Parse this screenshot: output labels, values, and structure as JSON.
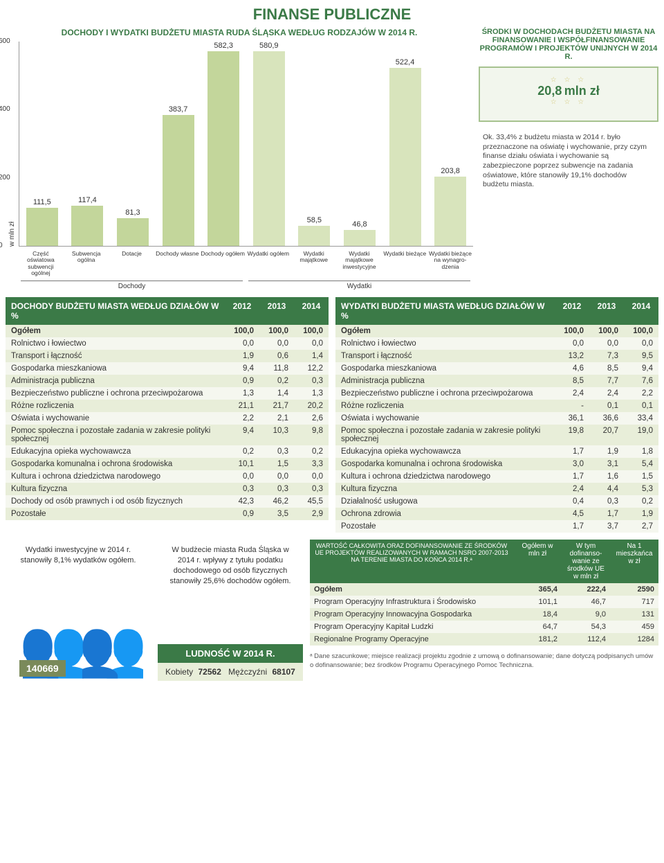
{
  "title": "FINANSE PUBLICZNE",
  "chart": {
    "title": "DOCHODY I WYDATKI BUDŻETU MIASTA\nRUDA ŚLĄSKA WEDŁUG RODZAJÓW W 2014 R.",
    "ylabel": "w mln zł",
    "ymax": 600,
    "yticks": [
      0,
      200,
      400,
      600
    ],
    "categories": [
      "Część oświatowa subwencji ogólnej",
      "Subwencja ogólna",
      "Dotacje",
      "Dochody własne",
      "Dochody ogółem",
      "Wydatki ogółem",
      "Wydatki majątkowe",
      "Wydatki majątkowe inwestycyjne",
      "Wydatki bieżące",
      "Wydatki bieżące na wynagro- dzenia"
    ],
    "values": [
      "111,5",
      "117,4",
      "81,3",
      "383,7",
      "582,3",
      "580,9",
      "58,5",
      "46,8",
      "522,4",
      "203,8"
    ],
    "numeric": [
      111.5,
      117.4,
      81.3,
      383.7,
      582.3,
      580.9,
      58.5,
      46.8,
      522.4,
      203.8
    ],
    "colors": [
      "#c3d69b",
      "#c3d69b",
      "#c3d69b",
      "#c3d69b",
      "#c3d69b",
      "#d8e4bc",
      "#d8e4bc",
      "#d8e4bc",
      "#d8e4bc",
      "#d8e4bc"
    ],
    "group1": "Dochody",
    "group2": "Wydatki"
  },
  "eu_box": {
    "title": "ŚRODKI W DOCHODACH BUDŻETU MIASTA NA FINANSOWANIE I WSPÓŁFINANSOWANIE PROGRAMÓW I PROJEKTÓW UNIJNYCH W 2014 R.",
    "value": "20,8",
    "unit": "mln zł"
  },
  "annotation": "Ok. 33,4% z budżetu miasta w 2014 r. było przeznaczone na oświatę i wychowanie, przy czym finanse działu oświata i wychowanie są zabezpieczone poprzez subwencje na zadania oświatowe, które stanowiły 19,1% dochodów budżetu miasta.",
  "income_table": {
    "title": "DOCHODY BUDŻETU MIASTA WEDŁUG DZIAŁÓW W %",
    "years": [
      "2012",
      "2013",
      "2014"
    ],
    "rows": [
      {
        "name": "Ogółem",
        "v": [
          "100,0",
          "100,0",
          "100,0"
        ],
        "bold": true
      },
      {
        "name": "Rolnictwo i łowiectwo",
        "v": [
          "0,0",
          "0,0",
          "0,0"
        ]
      },
      {
        "name": "Transport i łączność",
        "v": [
          "1,9",
          "0,6",
          "1,4"
        ]
      },
      {
        "name": "Gospodarka mieszkaniowa",
        "v": [
          "9,4",
          "11,8",
          "12,2"
        ]
      },
      {
        "name": "Administracja publiczna",
        "v": [
          "0,9",
          "0,2",
          "0,3"
        ]
      },
      {
        "name": "Bezpieczeństwo publiczne i ochrona przeciwpożarowa",
        "v": [
          "1,3",
          "1,4",
          "1,3"
        ]
      },
      {
        "name": "Różne rozliczenia",
        "v": [
          "21,1",
          "21,7",
          "20,2"
        ]
      },
      {
        "name": "Oświata i wychowanie",
        "v": [
          "2,2",
          "2,1",
          "2,6"
        ]
      },
      {
        "name": "Pomoc społeczna i pozostałe zadania w zakresie polityki społecznej",
        "v": [
          "9,4",
          "10,3",
          "9,8"
        ]
      },
      {
        "name": "Edukacyjna opieka wychowawcza",
        "v": [
          "0,2",
          "0,3",
          "0,2"
        ]
      },
      {
        "name": "Gospodarka komunalna i ochrona środowiska",
        "v": [
          "10,1",
          "1,5",
          "3,3"
        ]
      },
      {
        "name": "Kultura i ochrona dziedzictwa narodowego",
        "v": [
          "0,0",
          "0,0",
          "0,0"
        ]
      },
      {
        "name": "Kultura fizyczna",
        "v": [
          "0,3",
          "0,3",
          "0,3"
        ]
      },
      {
        "name": "Dochody od osób prawnych i od osób fizycznych",
        "v": [
          "42,3",
          "46,2",
          "45,5"
        ]
      },
      {
        "name": "Pozostałe",
        "v": [
          "0,9",
          "3,5",
          "2,9"
        ]
      }
    ]
  },
  "expense_table": {
    "title": "WYDATKI BUDŻETU MIASTA WEDŁUG DZIAŁÓW W %",
    "years": [
      "2012",
      "2013",
      "2014"
    ],
    "rows": [
      {
        "name": "Ogółem",
        "v": [
          "100,0",
          "100,0",
          "100,0"
        ],
        "bold": true
      },
      {
        "name": "Rolnictwo i łowiectwo",
        "v": [
          "0,0",
          "0,0",
          "0,0"
        ]
      },
      {
        "name": "Transport i łączność",
        "v": [
          "13,2",
          "7,3",
          "9,5"
        ]
      },
      {
        "name": "Gospodarka mieszkaniowa",
        "v": [
          "4,6",
          "8,5",
          "9,4"
        ]
      },
      {
        "name": "Administracja publiczna",
        "v": [
          "8,5",
          "7,7",
          "7,6"
        ]
      },
      {
        "name": "Bezpieczeństwo publiczne i ochrona przeciwpożarowa",
        "v": [
          "2,4",
          "2,4",
          "2,2"
        ]
      },
      {
        "name": "Różne rozliczenia",
        "v": [
          "-",
          "0,1",
          "0,1"
        ]
      },
      {
        "name": "Oświata i wychowanie",
        "v": [
          "36,1",
          "36,6",
          "33,4"
        ]
      },
      {
        "name": "Pomoc społeczna i pozostałe zadania w zakresie polityki społecznej",
        "v": [
          "19,8",
          "20,7",
          "19,0"
        ]
      },
      {
        "name": "Edukacyjna opieka wychowawcza",
        "v": [
          "1,7",
          "1,9",
          "1,8"
        ]
      },
      {
        "name": "Gospodarka komunalna i ochrona środowiska",
        "v": [
          "3,0",
          "3,1",
          "5,4"
        ]
      },
      {
        "name": "Kultura i ochrona dziedzictwa narodowego",
        "v": [
          "1,7",
          "1,6",
          "1,5"
        ]
      },
      {
        "name": "Kultura fizyczna",
        "v": [
          "2,4",
          "4,4",
          "5,3"
        ]
      },
      {
        "name": "Działalność usługowa",
        "v": [
          "0,4",
          "0,3",
          "0,2"
        ]
      },
      {
        "name": "Ochrona zdrowia",
        "v": [
          "4,5",
          "1,7",
          "1,9"
        ]
      },
      {
        "name": "Pozostałe",
        "v": [
          "1,7",
          "3,7",
          "2,7"
        ]
      }
    ]
  },
  "speech1": "Wydatki inwestycyjne w 2014 r. stanowiły 8,1% wydatków ogółem.",
  "speech2": "W budżecie miasta Ruda Śląska w 2014 r. wpływy z tytułu podatku dochodowego od osób fizycznych stanowiły 25,6% dochodów ogółem.",
  "people_num": "140669",
  "ludnosc": {
    "title": "LUDNOŚĆ W 2014 R.",
    "kobiety_label": "Kobiety",
    "kobiety": "72562",
    "mezczyzni_label": "Mężczyźni",
    "mezczyzni": "68107"
  },
  "eu_table": {
    "header_name": "WARTOŚĆ CAŁKOWITA ORAZ DOFINANSOWANIE ZE ŚRODKÓW UE PROJEKTÓW REALIZOWANYCH W RAMACH NSRO 2007-2013 NA TERENIE MIASTA DO KOŃCA 2014 R.ᵃ",
    "cols": [
      "Ogółem w mln zł",
      "W tym dofinanso- wanie ze środków UE w mln zł",
      "Na 1 mieszkańca w zł"
    ],
    "rows": [
      {
        "name": "Ogółem",
        "v": [
          "365,4",
          "222,4",
          "2590"
        ],
        "bold": true
      },
      {
        "name": "Program Operacyjny Infrastruktura i Środowisko",
        "v": [
          "101,1",
          "46,7",
          "717"
        ]
      },
      {
        "name": "Program Operacyjny Innowacyjna Gospodarka",
        "v": [
          "18,4",
          "9,0",
          "131"
        ]
      },
      {
        "name": "Program Operacyjny Kapitał Ludzki",
        "v": [
          "64,7",
          "54,3",
          "459"
        ]
      },
      {
        "name": "Regionalne Programy Operacyjne",
        "v": [
          "181,2",
          "112,4",
          "1284"
        ]
      }
    ]
  },
  "footnote": "ᵃ Dane szacunkowe; miejsce realizacji projektu zgodnie z umową o dofinansowanie; dane dotyczą podpisanych umów o dofinansowanie; bez środków Programu Operacyjnego Pomoc Techniczna."
}
